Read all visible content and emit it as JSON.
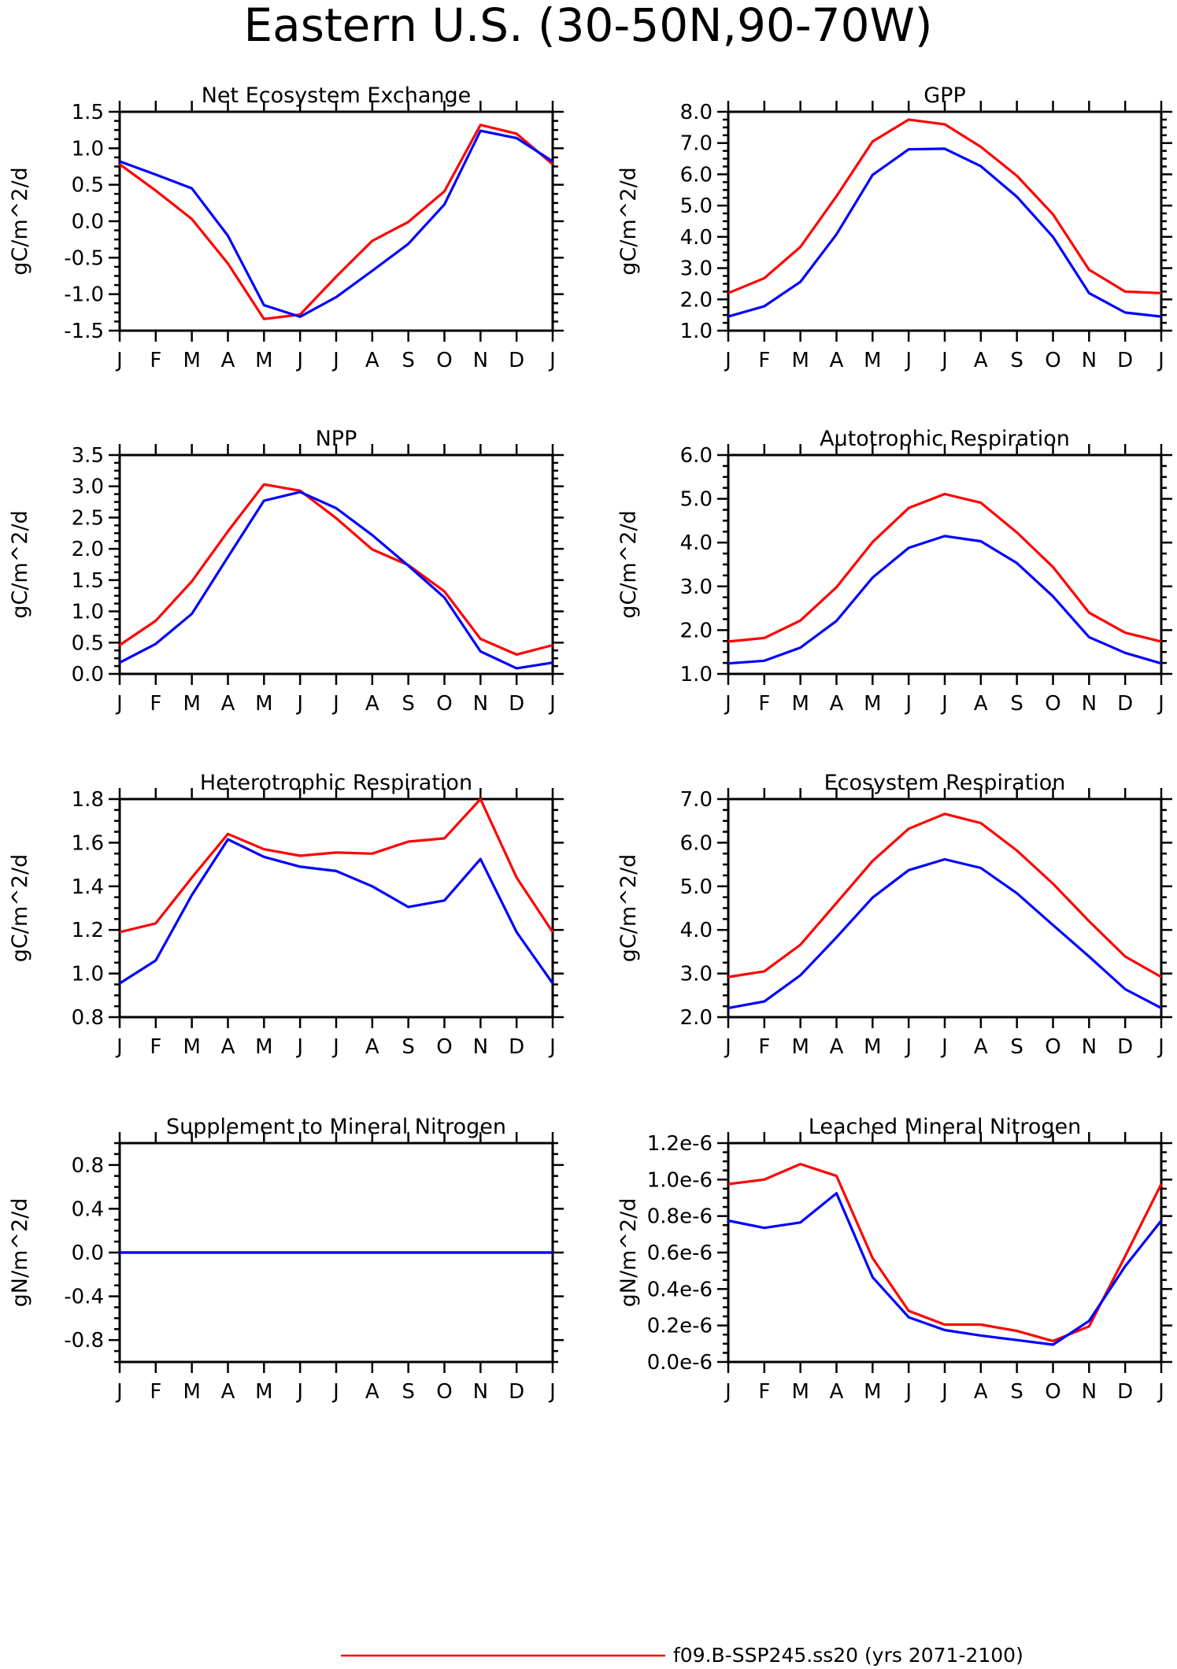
{
  "title": "Eastern U.S. (30-50N,90-70W)",
  "legend": [
    {
      "label": "f09.B-SSP245.ss20 (yrs 2071-2100)",
      "color": "#ff0000"
    }
  ],
  "colors": {
    "series_a": "#ff0000",
    "series_b": "#0000ff"
  },
  "chart_data": [
    {
      "type": "line",
      "title": "Net Ecosystem Exchange",
      "ylabel": "gC/m^2/d",
      "x": [
        "J",
        "F",
        "M",
        "A",
        "M",
        "J",
        "J",
        "A",
        "S",
        "O",
        "N",
        "D",
        "J"
      ],
      "ylim": [
        -1.5,
        1.5
      ],
      "yticks": [
        -1.5,
        -1.0,
        -0.5,
        0.0,
        0.5,
        1.0,
        1.5
      ],
      "ytick_labels": [
        "-1.5",
        "-1.0",
        "-0.5",
        "0.0",
        "0.5",
        "1.0",
        "1.5"
      ],
      "series": [
        {
          "values": [
            0.78,
            0.42,
            0.03,
            -0.58,
            -1.34,
            -1.28,
            -0.76,
            -0.27,
            -0.01,
            0.41,
            1.32,
            1.2,
            0.78
          ]
        },
        {
          "values": [
            0.82,
            0.64,
            0.45,
            -0.2,
            -1.15,
            -1.31,
            -1.04,
            -0.68,
            -0.31,
            0.23,
            1.24,
            1.14,
            0.82
          ]
        }
      ]
    },
    {
      "type": "line",
      "title": "GPP",
      "ylabel": "gC/m^2/d",
      "x": [
        "J",
        "F",
        "M",
        "A",
        "M",
        "J",
        "J",
        "A",
        "S",
        "O",
        "N",
        "D",
        "J"
      ],
      "ylim": [
        1.0,
        8.0
      ],
      "yticks": [
        1,
        2,
        3,
        4,
        5,
        6,
        7,
        8
      ],
      "ytick_labels": [
        "1.0",
        "2.0",
        "3.0",
        "4.0",
        "5.0",
        "6.0",
        "7.0",
        "8.0"
      ],
      "series": [
        {
          "values": [
            2.2,
            2.68,
            3.68,
            5.3,
            7.05,
            7.75,
            7.6,
            6.88,
            5.95,
            4.72,
            2.95,
            2.25,
            2.2
          ]
        },
        {
          "values": [
            1.45,
            1.78,
            2.56,
            4.08,
            5.98,
            6.8,
            6.82,
            6.26,
            5.28,
            4.0,
            2.2,
            1.58,
            1.45
          ]
        }
      ]
    },
    {
      "type": "line",
      "title": "NPP",
      "ylabel": "gC/m^2/d",
      "x": [
        "J",
        "F",
        "M",
        "A",
        "M",
        "J",
        "J",
        "A",
        "S",
        "O",
        "N",
        "D",
        "J"
      ],
      "ylim": [
        0.0,
        3.5
      ],
      "yticks": [
        0,
        0.5,
        1,
        1.5,
        2,
        2.5,
        3,
        3.5
      ],
      "ytick_labels": [
        "0.0",
        "0.5",
        "1.0",
        "1.5",
        "2.0",
        "2.5",
        "3.0",
        "3.5"
      ],
      "series": [
        {
          "values": [
            0.46,
            0.85,
            1.48,
            2.28,
            3.03,
            2.93,
            2.49,
            1.99,
            1.74,
            1.32,
            0.56,
            0.31,
            0.46
          ]
        },
        {
          "values": [
            0.18,
            0.48,
            0.96,
            1.87,
            2.77,
            2.91,
            2.65,
            2.22,
            1.73,
            1.22,
            0.36,
            0.09,
            0.18
          ]
        }
      ]
    },
    {
      "type": "line",
      "title": "Autotrophic Respiration",
      "ylabel": "gC/m^2/d",
      "x": [
        "J",
        "F",
        "M",
        "A",
        "M",
        "J",
        "J",
        "A",
        "S",
        "O",
        "N",
        "D",
        "J"
      ],
      "ylim": [
        1.0,
        6.0
      ],
      "yticks": [
        1,
        2,
        3,
        4,
        5,
        6
      ],
      "ytick_labels": [
        "1.0",
        "2.0",
        "3.0",
        "4.0",
        "5.0",
        "6.0"
      ],
      "series": [
        {
          "values": [
            1.74,
            1.82,
            2.22,
            2.98,
            4.01,
            4.79,
            5.11,
            4.91,
            4.23,
            3.44,
            2.4,
            1.94,
            1.74
          ]
        },
        {
          "values": [
            1.24,
            1.3,
            1.6,
            2.21,
            3.2,
            3.88,
            4.15,
            4.03,
            3.53,
            2.77,
            1.84,
            1.48,
            1.24
          ]
        }
      ]
    },
    {
      "type": "line",
      "title": "Heterotrophic Respiration",
      "ylabel": "gC/m^2/d",
      "x": [
        "J",
        "F",
        "M",
        "A",
        "M",
        "J",
        "J",
        "A",
        "S",
        "O",
        "N",
        "D",
        "J"
      ],
      "ylim": [
        0.8,
        1.8
      ],
      "yticks": [
        0.8,
        1.0,
        1.2,
        1.4,
        1.6,
        1.8
      ],
      "ytick_labels": [
        "0.8",
        "1.0",
        "1.2",
        "1.4",
        "1.6",
        "1.8"
      ],
      "series": [
        {
          "values": [
            1.19,
            1.23,
            1.44,
            1.64,
            1.57,
            1.54,
            1.555,
            1.55,
            1.605,
            1.62,
            1.8,
            1.44,
            1.19
          ]
        },
        {
          "values": [
            0.955,
            1.06,
            1.36,
            1.615,
            1.535,
            1.49,
            1.47,
            1.4,
            1.305,
            1.335,
            1.525,
            1.19,
            0.955
          ]
        }
      ]
    },
    {
      "type": "line",
      "title": "Ecosystem Respiration",
      "ylabel": "gC/m^2/d",
      "x": [
        "J",
        "F",
        "M",
        "A",
        "M",
        "J",
        "J",
        "A",
        "S",
        "O",
        "N",
        "D",
        "J"
      ],
      "ylim": [
        2.0,
        7.0
      ],
      "yticks": [
        2,
        3,
        4,
        5,
        6,
        7
      ],
      "ytick_labels": [
        "2.0",
        "3.0",
        "4.0",
        "5.0",
        "6.0",
        "7.0"
      ],
      "series": [
        {
          "values": [
            2.92,
            3.05,
            3.66,
            4.62,
            5.58,
            6.32,
            6.66,
            6.45,
            5.82,
            5.06,
            4.2,
            3.39,
            2.92
          ]
        },
        {
          "values": [
            2.21,
            2.36,
            2.96,
            3.83,
            4.74,
            5.37,
            5.62,
            5.42,
            4.84,
            4.11,
            3.39,
            2.64,
            2.21
          ]
        }
      ]
    },
    {
      "type": "line",
      "title": "Supplement to Mineral Nitrogen",
      "ylabel": "gN/m^2/d",
      "x": [
        "J",
        "F",
        "M",
        "A",
        "M",
        "J",
        "J",
        "A",
        "S",
        "O",
        "N",
        "D",
        "J"
      ],
      "ylim": [
        -1.0,
        1.0
      ],
      "yticks": [
        -0.8,
        -0.4,
        0.0,
        0.4,
        0.8
      ],
      "ytick_labels": [
        "-0.8",
        "-0.4",
        "0.0",
        "0.4",
        "0.8"
      ],
      "series": [
        {
          "values": [
            0,
            0,
            0,
            0,
            0,
            0,
            0,
            0,
            0,
            0,
            0,
            0,
            0
          ]
        },
        {
          "values": [
            0,
            0,
            0,
            0,
            0,
            0,
            0,
            0,
            0,
            0,
            0,
            0,
            0
          ]
        }
      ]
    },
    {
      "type": "line",
      "title": "Leached Mineral Nitrogen",
      "ylabel": "gN/m^2/d",
      "x": [
        "J",
        "F",
        "M",
        "A",
        "M",
        "J",
        "J",
        "A",
        "S",
        "O",
        "N",
        "D",
        "J"
      ],
      "ylim": [
        0.0,
        1.2e-06
      ],
      "yticks": [
        0,
        2e-07,
        4e-07,
        6e-07,
        8e-07,
        1e-06,
        1.2e-06
      ],
      "ytick_labels": [
        "0.0e-6",
        "0.2e-6",
        "0.4e-6",
        "0.6e-6",
        "0.8e-6",
        "1.0e-6",
        "1.2e-6"
      ],
      "series": [
        {
          "values": [
            9.75e-07,
            1e-06,
            1.085e-06,
            1.02e-06,
            5.7e-07,
            2.8e-07,
            2.05e-07,
            2.05e-07,
            1.7e-07,
            1.15e-07,
            1.95e-07,
            5.8e-07,
            9.75e-07
          ]
        },
        {
          "values": [
            7.75e-07,
            7.35e-07,
            7.65e-07,
            9.25e-07,
            4.65e-07,
            2.45e-07,
            1.75e-07,
            1.45e-07,
            1.2e-07,
            9.5e-08,
            2.25e-07,
            5.25e-07,
            7.75e-07
          ]
        }
      ]
    }
  ]
}
